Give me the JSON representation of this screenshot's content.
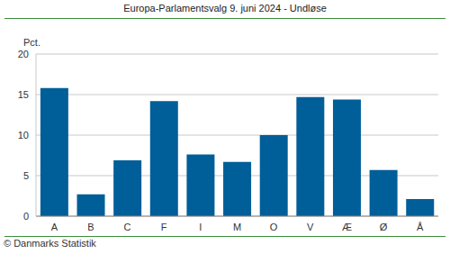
{
  "chart_data": {
    "type": "bar",
    "title": "Europa-Parlamentsvalg 9. juni 2024 - Undløse",
    "ylabel": "Pct.",
    "source": "© Danmarks Statistik",
    "categories": [
      "A",
      "B",
      "C",
      "F",
      "I",
      "M",
      "O",
      "V",
      "Æ",
      "Ø",
      "Å"
    ],
    "values": [
      15.8,
      2.7,
      6.9,
      14.2,
      7.6,
      6.7,
      10.0,
      14.7,
      14.4,
      5.7,
      2.1
    ],
    "color": "#005e98",
    "ylim": [
      0,
      20
    ],
    "yticks": [
      0,
      5,
      10,
      15,
      20
    ],
    "grid": true
  }
}
